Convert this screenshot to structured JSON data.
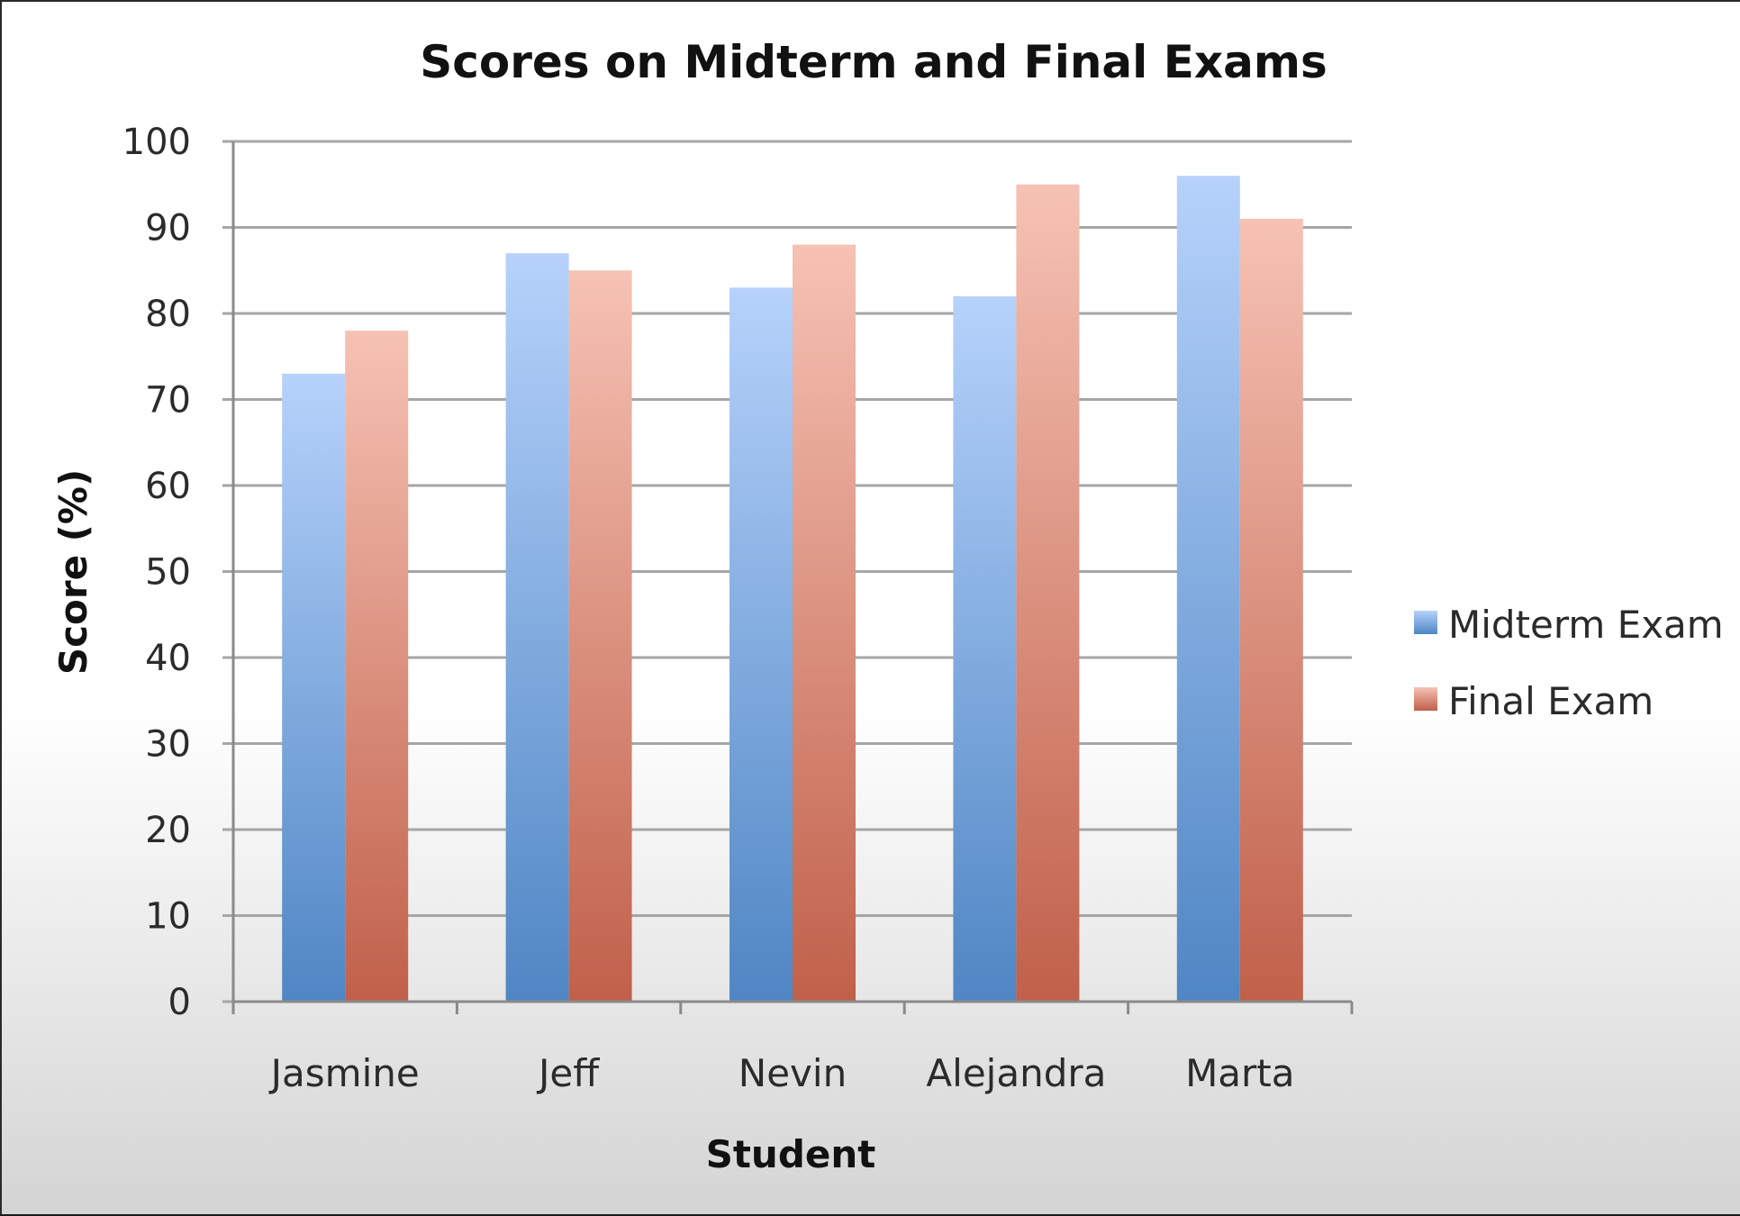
{
  "chart_data": {
    "type": "bar",
    "title": "Scores on Midterm and Final Exams",
    "xlabel": "Student",
    "ylabel": "Score (%)",
    "categories": [
      "Jasmine",
      "Jeff",
      "Nevin",
      "Alejandra",
      "Marta"
    ],
    "series": [
      {
        "name": "Midterm Exam",
        "values": [
          73,
          87,
          83,
          82,
          96
        ],
        "color_top": "#b6d2fb",
        "color_bottom": "#4f86c4"
      },
      {
        "name": "Final Exam",
        "values": [
          78,
          85,
          88,
          95,
          91
        ],
        "color_top": "#f6c2b4",
        "color_bottom": "#c0604a"
      }
    ],
    "ylim": [
      0,
      100
    ],
    "yticks": [
      "0",
      "10",
      "20",
      "30",
      "40",
      "50",
      "60",
      "70",
      "80",
      "90",
      "100"
    ],
    "grid": true,
    "legend_position": "right"
  }
}
